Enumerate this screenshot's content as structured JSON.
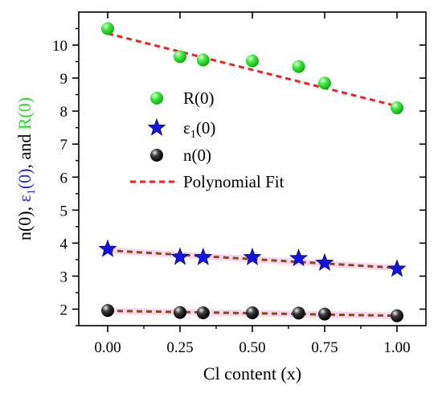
{
  "chart_data": {
    "type": "scatter",
    "xlabel": "Cl content (x)",
    "ylabel_parts": [
      {
        "text": "n(0), ",
        "color": "#000000"
      },
      {
        "text": "ε",
        "color": "#2b2bd6"
      },
      {
        "text": "1",
        "color": "#2b2bd6",
        "sub": true
      },
      {
        "text": "(0)",
        "color": "#2b2bd6"
      },
      {
        "text": ", and ",
        "color": "#000000"
      },
      {
        "text": "R(0)",
        "color": "#22dd22"
      }
    ],
    "xlim": [
      -0.1,
      1.1
    ],
    "ylim": [
      1.5,
      11.0
    ],
    "xticks": [
      0.0,
      0.25,
      0.5,
      0.75,
      1.0
    ],
    "xtick_labels": [
      "0.00",
      "0.25",
      "0.50",
      "0.75",
      "1.00"
    ],
    "yticks": [
      2,
      3,
      4,
      5,
      6,
      7,
      8,
      9,
      10
    ],
    "ytick_labels": [
      "2",
      "3",
      "4",
      "5",
      "6",
      "7",
      "8",
      "9",
      "10"
    ],
    "grid": false,
    "legend_placement": "center-left",
    "series": [
      {
        "name": "R(0)",
        "marker": "sphere",
        "color": "#33e833",
        "x": [
          0.0,
          0.25,
          0.33,
          0.5,
          0.66,
          0.75,
          1.0
        ],
        "y": [
          10.5,
          9.65,
          9.55,
          9.52,
          9.35,
          8.85,
          8.1
        ]
      },
      {
        "name": "ε1(0)",
        "name_parts": [
          "ε",
          "1",
          "(0)"
        ],
        "marker": "star",
        "color": "#1414e0",
        "x": [
          0.0,
          0.25,
          0.33,
          0.5,
          0.66,
          0.75,
          1.0
        ],
        "y": [
          3.82,
          3.58,
          3.57,
          3.57,
          3.54,
          3.4,
          3.22
        ]
      },
      {
        "name": "n(0)",
        "marker": "sphere",
        "color": "#222222",
        "x": [
          0.0,
          0.25,
          0.33,
          0.5,
          0.66,
          0.75,
          1.0
        ],
        "y": [
          1.96,
          1.9,
          1.89,
          1.89,
          1.88,
          1.85,
          1.8
        ]
      }
    ],
    "fits": [
      {
        "name": "Polynomial Fit",
        "color": "#ee2222",
        "x": [
          0.0,
          1.0
        ],
        "y": [
          10.35,
          8.15
        ]
      },
      {
        "color": "#8b4a1c",
        "halo": "#f2b8e6",
        "x": [
          0.0,
          1.0
        ],
        "y": [
          3.78,
          3.25
        ]
      },
      {
        "color": "#8b4a1c",
        "halo": "#f2b8e6",
        "x": [
          0.0,
          1.0
        ],
        "y": [
          1.95,
          1.8
        ]
      }
    ]
  }
}
